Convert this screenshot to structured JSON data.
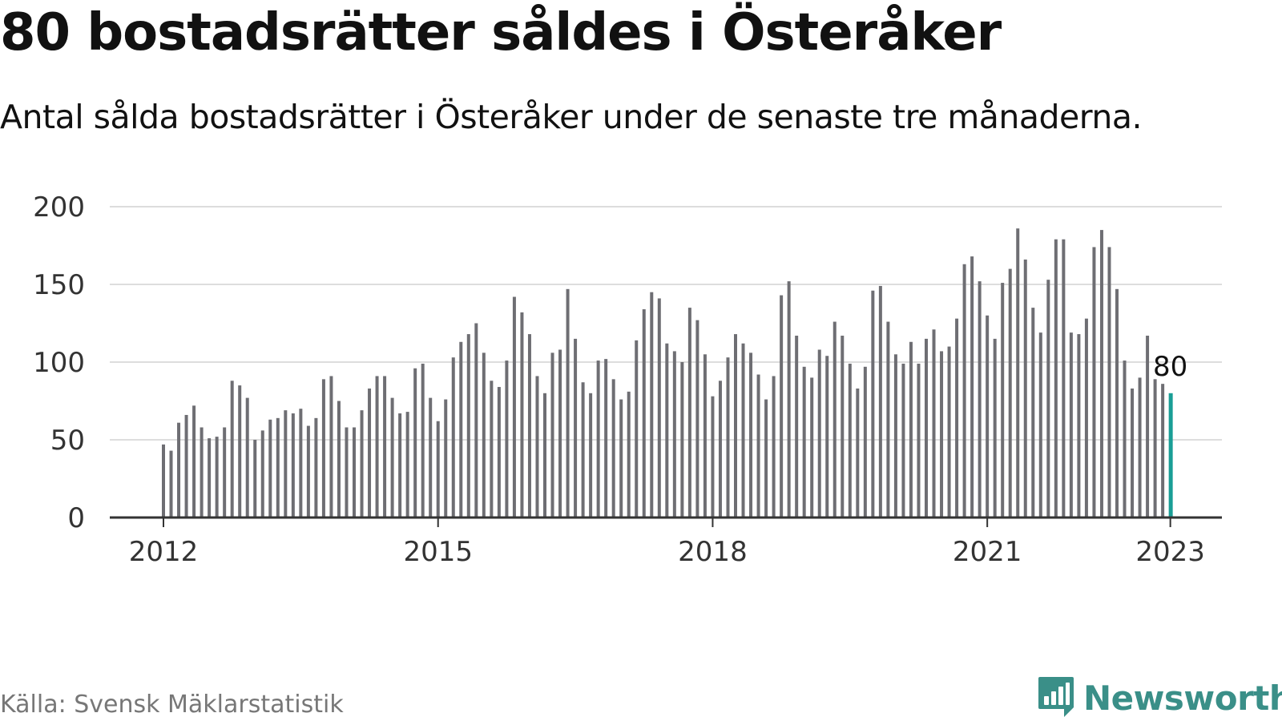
{
  "title": "80 bostadsrätter såldes i Österåker",
  "subtitle": "Antal sålda bostadsrätter i Österåker under de senaste tre månaderna.",
  "source": "Källa: Svensk Mäklarstatistik",
  "brand": {
    "name": "Newsworthy",
    "icon": "newsworthy-chart-bubble-icon",
    "color": "#3a8f88"
  },
  "colors": {
    "bar": "#6e6e73",
    "highlight": "#1a9e96",
    "grid": "#dddddd",
    "axis": "#333333"
  },
  "chart_data": {
    "type": "bar",
    "title": "80 bostadsrätter såldes i Österåker",
    "xlabel": "",
    "ylabel": "",
    "ylim": [
      0,
      200
    ],
    "yticks": [
      "0",
      "50",
      "100",
      "150",
      "200"
    ],
    "xticks": [
      "2012",
      "2015",
      "2018",
      "2021",
      "2023"
    ],
    "grid": true,
    "period": "rolling three-month totals, monthly, Jan 2012 – Jan 2023",
    "start": "2012-01",
    "highlight_label": "80",
    "values": [
      47,
      43,
      61,
      66,
      72,
      58,
      51,
      52,
      58,
      88,
      85,
      77,
      50,
      56,
      63,
      64,
      69,
      67,
      70,
      59,
      64,
      89,
      91,
      75,
      58,
      58,
      69,
      83,
      91,
      91,
      77,
      67,
      68,
      96,
      99,
      77,
      62,
      76,
      103,
      113,
      118,
      125,
      106,
      88,
      84,
      101,
      142,
      132,
      118,
      91,
      80,
      106,
      108,
      147,
      115,
      87,
      80,
      101,
      102,
      89,
      76,
      81,
      114,
      134,
      145,
      141,
      112,
      107,
      100,
      135,
      127,
      105,
      78,
      88,
      103,
      118,
      112,
      106,
      92,
      76,
      91,
      143,
      152,
      117,
      97,
      90,
      108,
      104,
      126,
      117,
      99,
      83,
      97,
      146,
      149,
      126,
      105,
      99,
      113,
      99,
      115,
      121,
      107,
      110,
      128,
      163,
      168,
      152,
      130,
      115,
      151,
      160,
      186,
      166,
      135,
      119,
      153,
      179,
      179,
      119,
      118,
      128,
      174,
      185,
      174,
      147,
      101,
      83,
      90,
      117,
      89,
      86,
      80
    ]
  }
}
